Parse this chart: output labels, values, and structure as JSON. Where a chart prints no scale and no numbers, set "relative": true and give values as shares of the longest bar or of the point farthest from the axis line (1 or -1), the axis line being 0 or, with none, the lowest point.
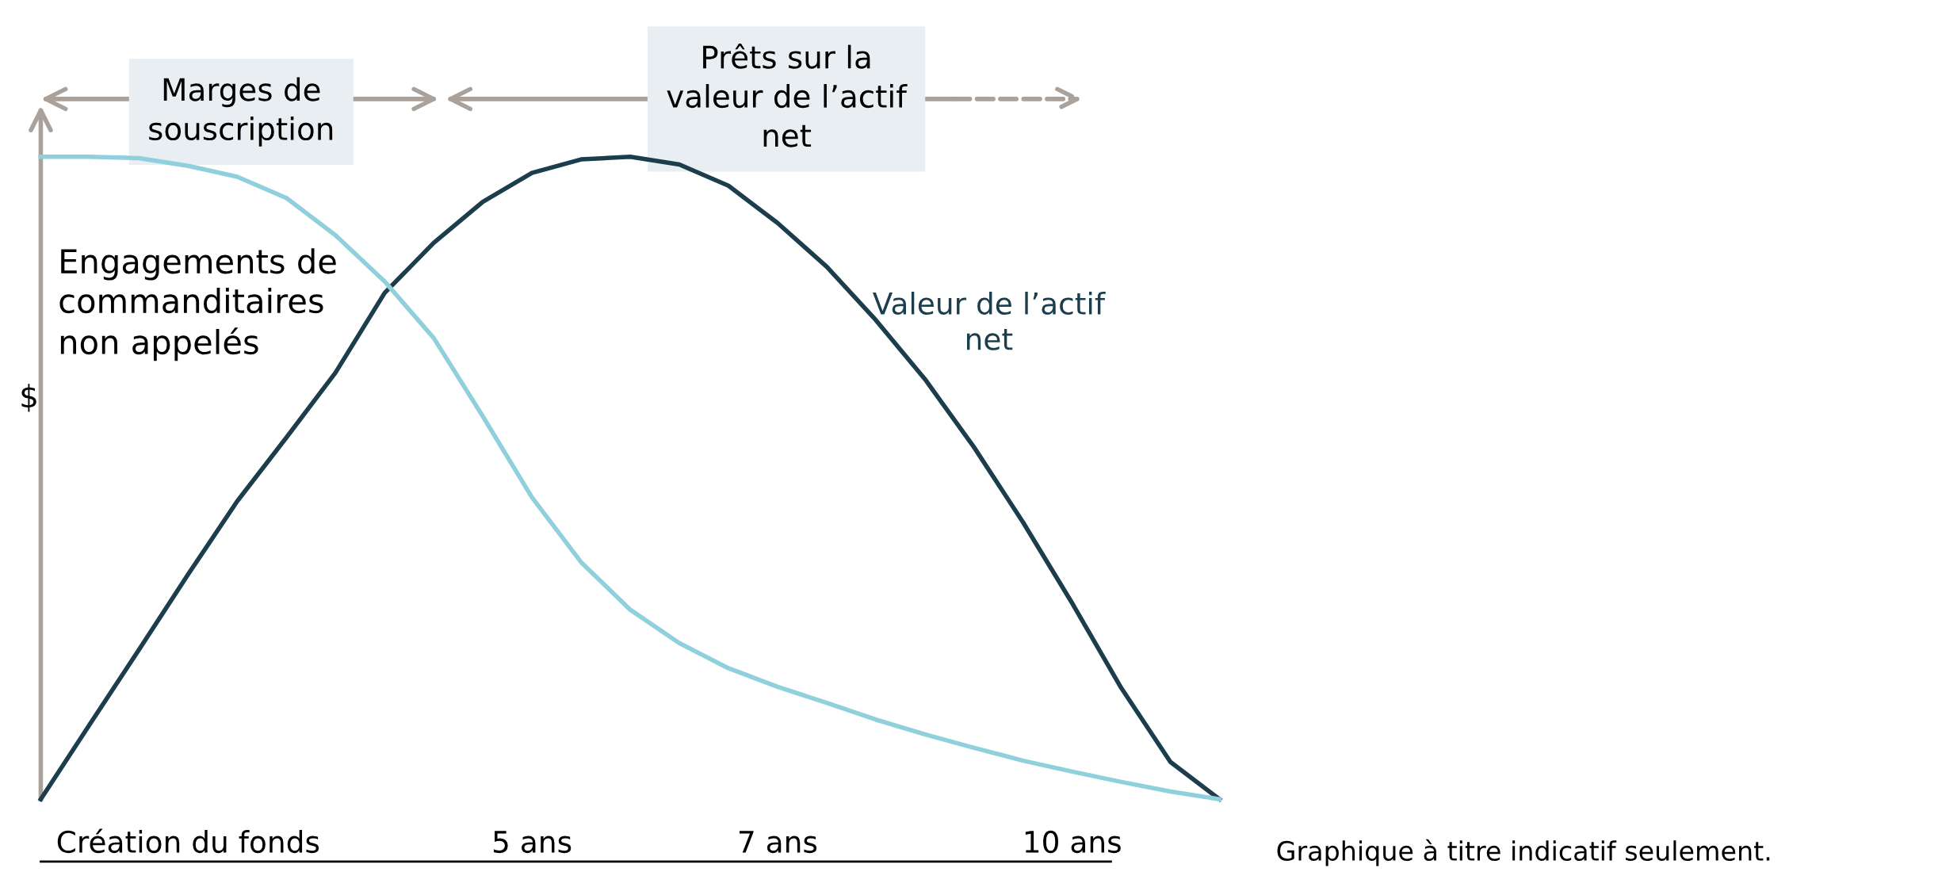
{
  "chart_data": {
    "type": "line",
    "relative": true,
    "ylabel": "$",
    "tick_labels": "x",
    "categories": [
      null,
      null,
      null,
      "Création du fonds",
      null,
      null,
      null,
      null,
      null,
      null,
      "5 ans",
      null,
      null,
      null,
      null,
      "7 ans",
      null,
      null,
      null,
      null,
      null,
      "10 ans",
      null,
      null,
      null
    ],
    "series": [
      {
        "name": "Valeur de l’actif net",
        "color": "#1c3d4c",
        "values": [
          0,
          0.117,
          0.233,
          0.35,
          0.464,
          0.563,
          0.664,
          0.788,
          0.866,
          0.93,
          0.975,
          0.996,
          1.0,
          0.988,
          0.955,
          0.897,
          0.829,
          0.746,
          0.654,
          0.548,
          0.431,
          0.305,
          0.173,
          0.058,
          0
        ]
      },
      {
        "name": "Engagements de commanditaires non appelés",
        "color": "#8fd0dc",
        "values": [
          1.0,
          1.0,
          0.998,
          0.986,
          0.969,
          0.936,
          0.878,
          0.806,
          0.718,
          0.596,
          0.47,
          0.369,
          0.295,
          0.243,
          0.204,
          0.175,
          0.15,
          0.124,
          0.101,
          0.08,
          0.06,
          0.043,
          0.027,
          0.012,
          0
        ]
      }
    ],
    "annotations": [
      "Marges de souscription",
      "Prêts sur la valeur de l’actif net",
      "Graphique à titre indicatif seulement."
    ]
  }
}
